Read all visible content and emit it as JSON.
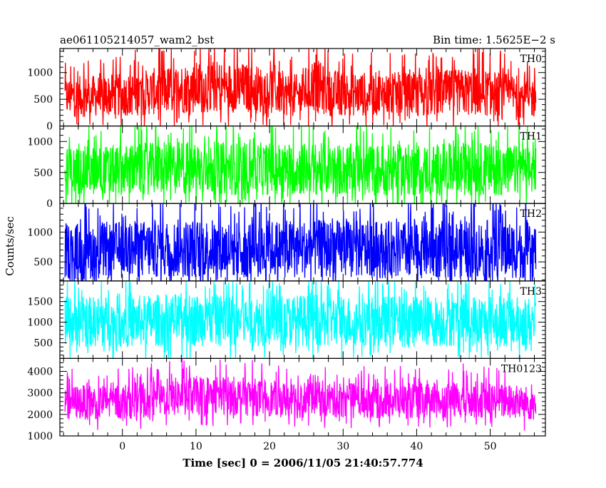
{
  "header": {
    "left_title": "ae061105214057_wam2_bst",
    "right_title": "Bin time: 1.5625E−2 s"
  },
  "chart_data": {
    "type": "line",
    "xlabel": "Time [sec] 0 = 2006/11/05 21:40:57.774",
    "ylabel": "Counts/sec",
    "xlim": [
      -8.5,
      57.5
    ],
    "data_xrange": [
      -7.8,
      56.2
    ],
    "x_ticks": [
      0,
      10,
      20,
      30,
      40,
      50
    ],
    "bin_time_s": 0.015625,
    "panels": [
      {
        "name": "TH0",
        "color": "#ff0000",
        "ylim": [
          0,
          1450
        ],
        "y_ticks": [
          0,
          500,
          1000
        ],
        "x": [
          -8,
          0,
          8,
          12,
          16,
          20,
          24,
          26,
          28,
          32,
          40,
          48,
          56
        ],
        "mean": [
          540,
          580,
          700,
          740,
          720,
          660,
          560,
          780,
          620,
          600,
          590,
          640,
          520
        ],
        "spread": [
          400,
          420,
          500,
          520,
          500,
          460,
          420,
          560,
          460,
          440,
          440,
          480,
          400
        ]
      },
      {
        "name": "TH1",
        "color": "#00ff00",
        "ylim": [
          0,
          1250
        ],
        "y_ticks": [
          0,
          500,
          1000
        ],
        "x": [
          -8,
          0,
          8,
          16,
          24,
          32,
          40,
          48,
          56
        ],
        "mean": [
          520,
          540,
          580,
          560,
          560,
          540,
          540,
          560,
          520
        ],
        "spread": [
          420,
          430,
          460,
          450,
          450,
          440,
          440,
          450,
          420
        ]
      },
      {
        "name": "TH2",
        "color": "#0000ff",
        "ylim": [
          180,
          1480
        ],
        "y_ticks": [
          500,
          1000
        ],
        "x": [
          -8,
          0,
          8,
          16,
          24,
          32,
          40,
          48,
          56
        ],
        "mean": [
          680,
          700,
          730,
          720,
          720,
          710,
          700,
          720,
          690
        ],
        "spread": [
          500,
          510,
          520,
          520,
          520,
          510,
          510,
          520,
          500
        ]
      },
      {
        "name": "TH3",
        "color": "#00ffff",
        "ylim": [
          120,
          2000
        ],
        "y_ticks": [
          500,
          1000,
          1500
        ],
        "x": [
          -8,
          0,
          8,
          16,
          24,
          32,
          40,
          48,
          56
        ],
        "mean": [
          1000,
          1020,
          1060,
          1040,
          1040,
          1030,
          1020,
          1040,
          1000
        ],
        "spread": [
          650,
          660,
          680,
          670,
          670,
          660,
          660,
          670,
          650
        ]
      },
      {
        "name": "TH0123",
        "color": "#ff00ff",
        "ylim": [
          1000,
          4600
        ],
        "y_ticks": [
          1000,
          2000,
          3000,
          4000
        ],
        "x": [
          -8,
          0,
          8,
          12,
          16,
          20,
          24,
          26,
          28,
          32,
          40,
          48,
          56
        ],
        "mean": [
          2550,
          2600,
          2850,
          2900,
          2850,
          2750,
          2600,
          2950,
          2700,
          2650,
          2620,
          2700,
          2500
        ],
        "spread": [
          850,
          880,
          950,
          980,
          950,
          900,
          860,
          1000,
          900,
          880,
          880,
          900,
          850
        ]
      }
    ]
  }
}
